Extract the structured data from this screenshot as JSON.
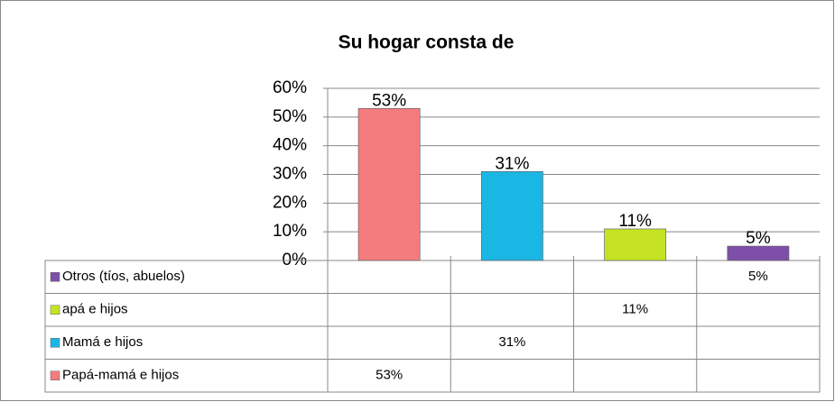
{
  "chart_data": {
    "type": "bar",
    "title": "Su hogar consta de",
    "categories": [
      null,
      null,
      null,
      null
    ],
    "series": [
      {
        "name": "Papá-mamá e hijos",
        "color": "#f47c7e",
        "values": [
          53,
          null,
          null,
          null
        ],
        "value_labels": [
          "53%",
          null,
          null,
          null
        ]
      },
      {
        "name": "Mamá e hijos",
        "color": "#1bb7e4",
        "values": [
          null,
          31,
          null,
          null
        ],
        "value_labels": [
          null,
          "31%",
          null,
          null
        ]
      },
      {
        "name": "apá e hijos",
        "color": "#c5e324",
        "values": [
          null,
          null,
          11,
          null
        ],
        "value_labels": [
          null,
          null,
          "11%",
          null
        ]
      },
      {
        "name": "Otros (tíos, abuelos)",
        "color": "#7e4fa8",
        "values": [
          null,
          null,
          null,
          5
        ],
        "value_labels": [
          null,
          null,
          null,
          "5%"
        ]
      }
    ],
    "ylim": [
      0,
      60
    ],
    "yticks": [
      {
        "value": 0,
        "label": "0%"
      },
      {
        "value": 10,
        "label": "10%"
      },
      {
        "value": 20,
        "label": "20%"
      },
      {
        "value": 30,
        "label": "30%"
      },
      {
        "value": 40,
        "label": "40%"
      },
      {
        "value": 50,
        "label": "50%"
      },
      {
        "value": 60,
        "label": "60%"
      }
    ],
    "grid": true,
    "legend": "table"
  }
}
